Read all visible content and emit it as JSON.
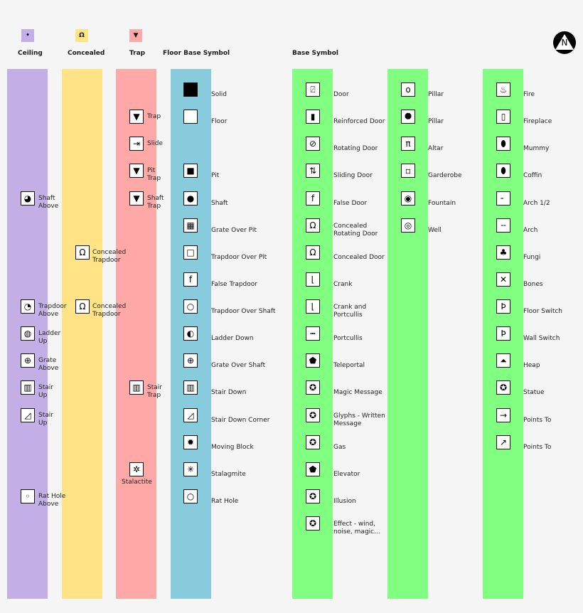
{
  "colors": {
    "ceiling": "#c4aee6",
    "concealed": "#ffe384",
    "trap": "#ffa8a8",
    "floor": "#88cbdd",
    "base": "#80ff80",
    "background": "#f5f5f5"
  },
  "legend": {
    "ceiling": {
      "label": "Ceiling",
      "swatch_glyph": "•"
    },
    "concealed": {
      "label": "Concealed",
      "swatch_glyph": "Ω"
    },
    "trap": {
      "label": "Trap",
      "swatch_glyph": "▼"
    },
    "floor": {
      "label": "Floor Base Symbol"
    },
    "base": {
      "label": "Base Symbol"
    }
  },
  "compass": {
    "label": "N",
    "icon": "north-arrow-icon"
  },
  "columns": {
    "ceiling": [
      {
        "label": "Shaft\nAbove",
        "icon": "shaft-above-icon"
      },
      {
        "label": "Trapdoor\nAbove",
        "icon": "trapdoor-above-icon"
      },
      {
        "label": "Ladder\nUp",
        "icon": "ladder-up-icon"
      },
      {
        "label": "Grate\nAbove",
        "icon": "grate-above-icon"
      },
      {
        "label": "Stair\nUp",
        "icon": "stair-up-icon"
      },
      {
        "label": "Stair\nUp",
        "icon": "stair-up-corner-icon"
      },
      {
        "label": "Rat Hole\nAbove",
        "icon": "rat-hole-above-icon"
      }
    ],
    "concealed": [
      {
        "label": "Concealed\nTrapdoor",
        "icon": "concealed-trapdoor-icon"
      },
      {
        "label": "Concealed\nTrapdoor",
        "icon": "concealed-trapdoor-round-icon"
      }
    ],
    "trap": [
      {
        "label": "Trap",
        "icon": "trap-icon"
      },
      {
        "label": "Slide",
        "icon": "slide-icon"
      },
      {
        "label": "Pit\nTrap",
        "icon": "pit-trap-icon"
      },
      {
        "label": "Shaft\nTrap",
        "icon": "shaft-trap-icon"
      },
      {
        "label": "Stair\nTrap",
        "icon": "stair-trap-icon"
      },
      {
        "label": "Stalactite",
        "icon": "stalactite-icon"
      }
    ],
    "floor": [
      {
        "label": "Solid",
        "icon": "solid-icon"
      },
      {
        "label": "Floor",
        "icon": "floor-icon"
      },
      {
        "label": "Pit",
        "icon": "pit-icon"
      },
      {
        "label": "Shaft",
        "icon": "shaft-icon"
      },
      {
        "label": "Grate Over Pit",
        "icon": "grate-over-pit-icon"
      },
      {
        "label": "Trapdoor Over Pit",
        "icon": "trapdoor-over-pit-icon"
      },
      {
        "label": "False Trapdoor",
        "icon": "false-trapdoor-icon"
      },
      {
        "label": "Trapdoor Over Shaft",
        "icon": "trapdoor-over-shaft-icon"
      },
      {
        "label": "Ladder Down",
        "icon": "ladder-down-icon"
      },
      {
        "label": "Grate Over Shaft",
        "icon": "grate-over-shaft-icon"
      },
      {
        "label": "Stair Down",
        "icon": "stair-down-icon"
      },
      {
        "label": "Stair Down Corner",
        "icon": "stair-down-corner-icon"
      },
      {
        "label": "Moving Block",
        "icon": "moving-block-icon"
      },
      {
        "label": "Stalagmite",
        "icon": "stalagmite-icon"
      },
      {
        "label": "Rat Hole",
        "icon": "rat-hole-icon"
      }
    ],
    "base1": [
      {
        "label": "Door",
        "icon": "door-icon"
      },
      {
        "label": "Reinforced Door",
        "icon": "reinforced-door-icon"
      },
      {
        "label": "Rotating Door",
        "icon": "rotating-door-icon"
      },
      {
        "label": "Sliding Door",
        "icon": "sliding-door-icon"
      },
      {
        "label": "False Door",
        "icon": "false-door-icon"
      },
      {
        "label": "Concealed\nRotating Door",
        "icon": "concealed-rotating-door-icon"
      },
      {
        "label": "Concealed Door",
        "icon": "concealed-door-icon"
      },
      {
        "label": "Crank",
        "icon": "crank-icon"
      },
      {
        "label": "Crank and\nPortcullis",
        "icon": "crank-and-portcullis-icon"
      },
      {
        "label": "Portcullis",
        "icon": "portcullis-icon"
      },
      {
        "label": "Teleportal",
        "icon": "teleportal-icon"
      },
      {
        "label": "Magic Message",
        "icon": "magic-message-icon"
      },
      {
        "label": "Glyphs - Written\nMessage",
        "icon": "glyphs-icon"
      },
      {
        "label": "Gas",
        "icon": "gas-icon"
      },
      {
        "label": "Elevator",
        "icon": "elevator-icon"
      },
      {
        "label": "Illusion",
        "icon": "illusion-icon"
      },
      {
        "label": "Effect - wind,\nnoise, magic...",
        "icon": "effect-icon"
      }
    ],
    "base2": [
      {
        "label": "Pillar",
        "icon": "pillar-round-icon"
      },
      {
        "label": "Pillar",
        "icon": "pillar-octagon-icon"
      },
      {
        "label": "Altar",
        "icon": "altar-icon"
      },
      {
        "label": "Garderobe",
        "icon": "garderobe-icon"
      },
      {
        "label": "Fountain",
        "icon": "fountain-icon"
      },
      {
        "label": "Well",
        "icon": "well-icon"
      }
    ],
    "base3": [
      {
        "label": "Fire",
        "icon": "fire-icon"
      },
      {
        "label": "Fireplace",
        "icon": "fireplace-icon"
      },
      {
        "label": "Mummy",
        "icon": "mummy-icon"
      },
      {
        "label": "Coffin",
        "icon": "coffin-icon"
      },
      {
        "label": "Arch 1/2",
        "icon": "half-arch-icon"
      },
      {
        "label": "Arch",
        "icon": "arch-icon"
      },
      {
        "label": "Fungi",
        "icon": "fungi-icon"
      },
      {
        "label": "Bones",
        "icon": "bones-icon"
      },
      {
        "label": "Floor Switch",
        "icon": "floor-switch-icon"
      },
      {
        "label": "Wall Switch",
        "icon": "wall-switch-icon"
      },
      {
        "label": "Heap",
        "icon": "heap-icon"
      },
      {
        "label": "Statue",
        "icon": "statue-icon"
      },
      {
        "label": "Points To",
        "icon": "points-to-icon"
      },
      {
        "label": "Points To",
        "icon": "points-to-diagonal-icon"
      }
    ]
  }
}
